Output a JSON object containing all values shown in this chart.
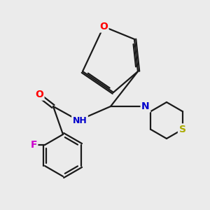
{
  "background_color": "#ebebeb",
  "bond_color": "#1a1a1a",
  "atom_colors": {
    "O": "#ff0000",
    "N": "#0000cc",
    "S": "#aaaa00",
    "F": "#cc00cc",
    "C": "#1a1a1a"
  },
  "figsize": [
    3.0,
    3.0
  ],
  "dpi": 100,
  "lw": 1.6
}
